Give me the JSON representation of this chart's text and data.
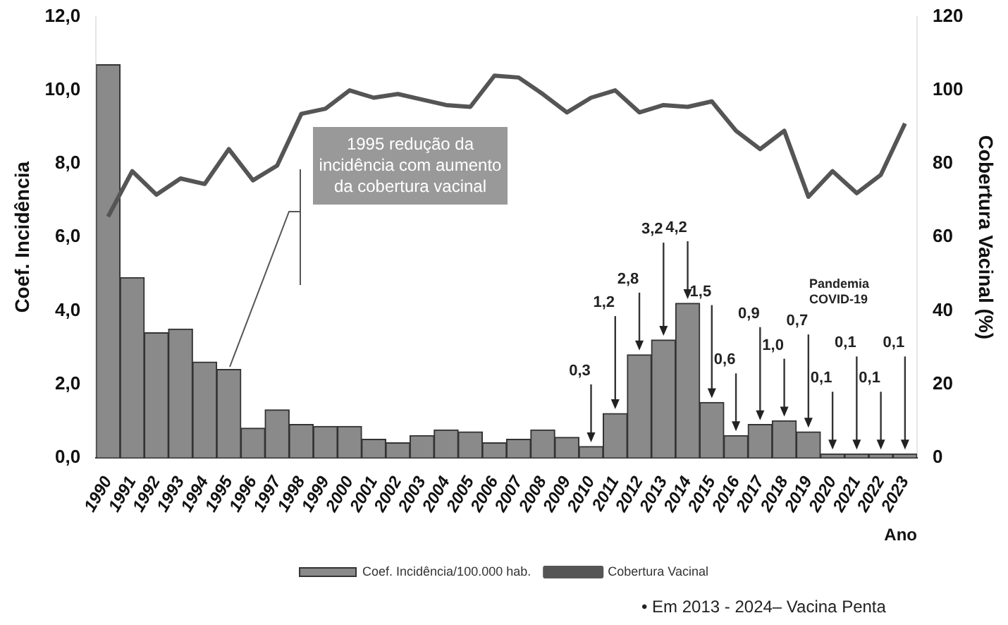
{
  "chart_data": {
    "type": "bar",
    "xlabel": "Ano",
    "ylabel": "Coef. Incidência",
    "y2label": "Cobertura Vacinal (%)",
    "categories": [
      "1990",
      "1991",
      "1992",
      "1993",
      "1994",
      "1995",
      "1996",
      "1997",
      "1998",
      "1999",
      "2000",
      "2001",
      "2002",
      "2003",
      "2004",
      "2005",
      "2006",
      "2007",
      "2008",
      "2009",
      "2010",
      "2011",
      "2012",
      "2013",
      "2014",
      "2015",
      "2016",
      "2017",
      "2018",
      "2019",
      "2020",
      "2021",
      "2022",
      "2023"
    ],
    "series": [
      {
        "name": "Coef. Incidência/100.000 hab.",
        "color": "#8a8a8a",
        "values": [
          10.7,
          4.9,
          3.4,
          3.5,
          2.6,
          2.4,
          0.8,
          1.3,
          0.9,
          0.85,
          0.85,
          0.5,
          0.4,
          0.6,
          0.75,
          0.7,
          0.4,
          0.5,
          0.75,
          0.55,
          0.3,
          1.2,
          2.8,
          3.2,
          4.2,
          1.5,
          0.6,
          0.9,
          1.0,
          0.7,
          0.1,
          0.1,
          0.1,
          0.1
        ],
        "value_labels": [
          null,
          null,
          null,
          null,
          null,
          null,
          null,
          null,
          null,
          null,
          null,
          null,
          null,
          null,
          null,
          null,
          null,
          null,
          null,
          null,
          "0,3",
          "1,2",
          "2,8",
          "3,2",
          "4,2",
          "1,5",
          "0,6",
          "0,9",
          "1,0",
          "0,7",
          "0,1",
          "0,1",
          "0,1",
          "0,1"
        ]
      },
      {
        "name": "Cobertura Vacinal",
        "type": "line",
        "axis": "y2",
        "color": "#555555",
        "values": [
          65.6,
          78,
          71.6,
          76,
          74.5,
          84,
          75.5,
          79.5,
          93.6,
          95,
          100,
          98,
          99,
          97.5,
          96,
          95.5,
          104,
          103.5,
          99,
          94,
          98,
          100,
          94,
          96,
          95.5,
          97,
          89,
          84,
          89,
          71,
          78,
          72,
          77,
          91
        ]
      }
    ],
    "ylim": [
      0,
      12
    ],
    "yticks": [
      {
        "value": 0,
        "label": "0,0"
      },
      {
        "value": 2,
        "label": "2,0"
      },
      {
        "value": 4,
        "label": "4,0"
      },
      {
        "value": 6,
        "label": "6,0"
      },
      {
        "value": 8,
        "label": "8,0"
      },
      {
        "value": 10,
        "label": "10,0"
      },
      {
        "value": 12,
        "label": "12,0"
      }
    ],
    "y2lim": [
      0,
      120
    ],
    "y2ticks": [
      0,
      20,
      40,
      60,
      80,
      100,
      120
    ],
    "grid": false,
    "legend": "bottom",
    "marker": "none",
    "line_style": "solid",
    "annotations": [
      "1995 redução da incidência com aumento da cobertura vacinal",
      "Pandemia COVID-19",
      "• Em 2013 - 2024– Vacina Penta"
    ]
  }
}
